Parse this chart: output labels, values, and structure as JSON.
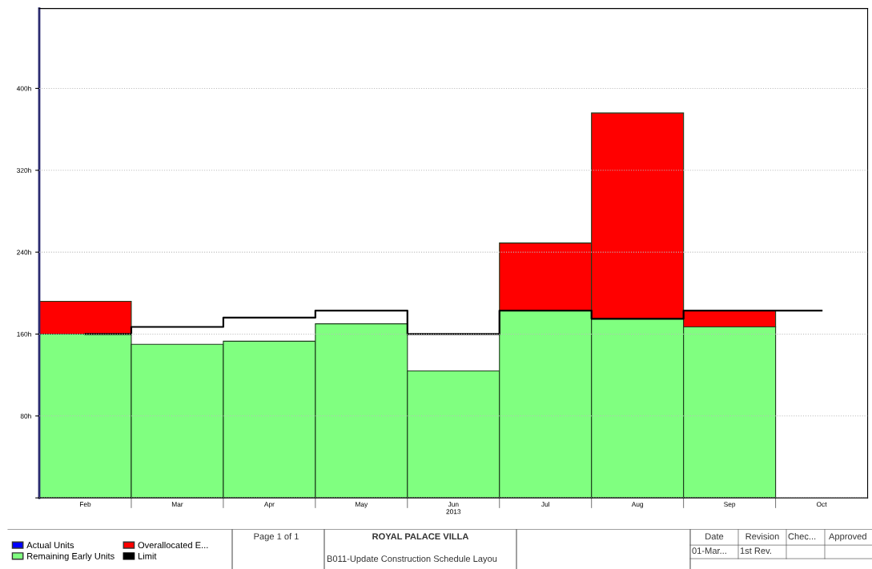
{
  "chart_data": {
    "type": "bar",
    "stacked": true,
    "categories": [
      "Feb",
      "Mar",
      "Apr",
      "May",
      "Jun",
      "Jul",
      "Aug",
      "Sep",
      "Oct"
    ],
    "xlabel": "2013",
    "series": [
      {
        "name": "Actual Units",
        "color": "#0000ff",
        "values": [
          null,
          null,
          null,
          null,
          null,
          null,
          null,
          null,
          null
        ]
      },
      {
        "name": "Remaining Early Units",
        "color": "#80ff80",
        "values": [
          160,
          150,
          153,
          170,
          124,
          183,
          175,
          167,
          0
        ]
      },
      {
        "name": "Overallocated E...",
        "color": "#ff0000",
        "values": [
          32,
          0,
          0,
          0,
          0,
          66,
          201,
          16,
          0
        ]
      },
      {
        "name": "Limit",
        "type": "step",
        "color": "#000000",
        "values": [
          160,
          167,
          176,
          183,
          160,
          183,
          175,
          183,
          183
        ]
      }
    ],
    "ylim": [
      0,
      478
    ],
    "yticks": [
      {
        "value": 0,
        "label": null
      },
      {
        "value": 80,
        "label": "80h"
      },
      {
        "value": 160,
        "label": "160h"
      },
      {
        "value": 240,
        "label": "240h"
      },
      {
        "value": 320,
        "label": "320h"
      },
      {
        "value": 400,
        "label": "400h"
      }
    ],
    "grid": "y",
    "legend": "bottom left",
    "annotations": [
      "Page 1 of 1",
      "ROYAL PALACE VILLA",
      "B011-Update Construction Schedule Layou",
      "Date",
      "Revision",
      "Chec...",
      "Approved",
      "01-Mar...",
      "1st Rev."
    ]
  }
}
